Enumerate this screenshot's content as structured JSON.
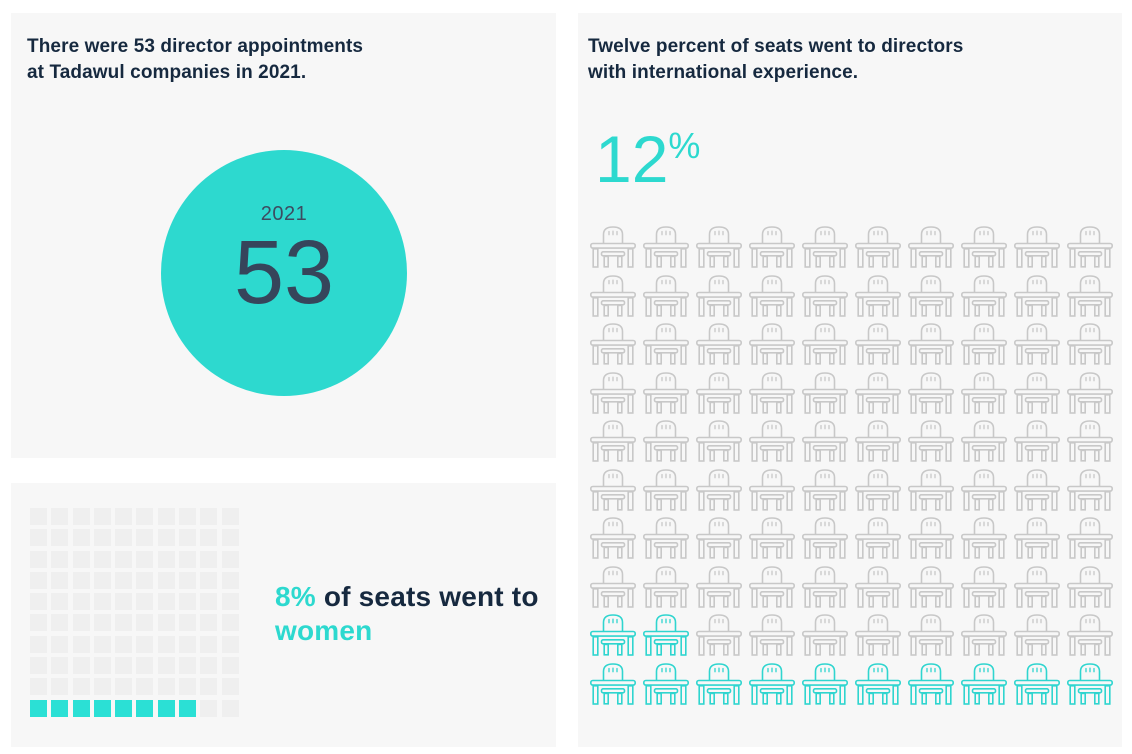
{
  "colors": {
    "teal_accent": "#2dd9cf",
    "teal_waffle": "#2be0d5",
    "navy_text": "#16293f",
    "slate_number": "#36455b",
    "year_text": "#3d4c61",
    "panel_background": "#f7f7f7",
    "waffle_empty": "#efefef",
    "chair_outline_gray": "#c8c8c8",
    "page_background": "#ffffff"
  },
  "appointments_panel": {
    "title": "There were 53 director appointments\nat Tadawul companies in 2021.",
    "year_label": "2021",
    "count": "53"
  },
  "women_panel": {
    "stat": "8%",
    "text_middle": " of seats went to ",
    "text_highlight_end": "women",
    "chart_data": {
      "type": "waffle",
      "rows": 10,
      "columns": 10,
      "total_units": 100,
      "filled_units": 8,
      "fill_origin": "bottom-left",
      "unit": "percent of board seats",
      "label": "8% of seats went to women"
    }
  },
  "international_panel": {
    "title": "Twelve percent of seats went to directors\nwith international experience.",
    "stat_value": "12",
    "stat_unit": "%",
    "chart_data": {
      "type": "waffle",
      "rows": 10,
      "columns": 10,
      "total_units": 100,
      "filled_units": 12,
      "fill_origin": "bottom-left",
      "icon": "seat-at-table",
      "unit": "percent of board seats",
      "label": "12% of seats went to directors with international experience"
    }
  }
}
